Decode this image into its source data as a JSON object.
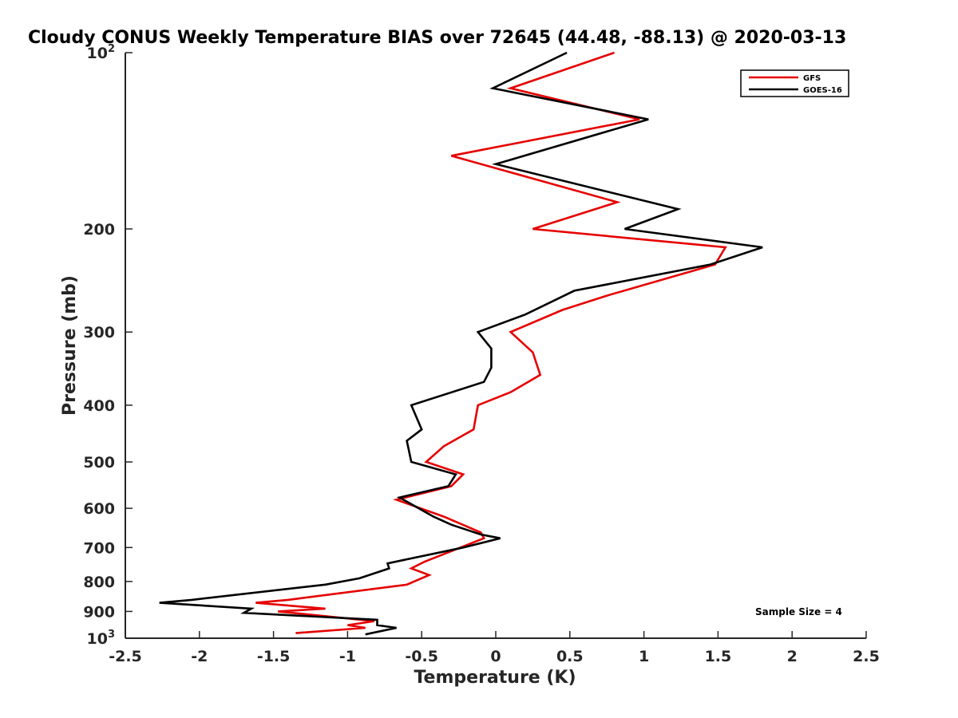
{
  "chart_data": {
    "type": "line",
    "title": "Cloudy CONUS Weekly Temperature BIAS over 72645 (44.48, -88.13) @ 2020-03-13",
    "xlabel": "Temperature (K)",
    "ylabel": "Pressure (mb)",
    "xlim": [
      -2.5,
      2.5
    ],
    "ylim": [
      1000,
      100
    ],
    "y_scale": "log",
    "y_reversed": true,
    "x_ticks": [
      "-2.5",
      "-2",
      "-1.5",
      "-1",
      "-0.5",
      "0",
      "0.5",
      "1",
      "1.5",
      "2",
      "2.5"
    ],
    "y_ticks": [
      {
        "value": 100,
        "label": "10",
        "exp": "2"
      },
      {
        "value": 200,
        "label": "200",
        "exp": ""
      },
      {
        "value": 300,
        "label": "300",
        "exp": ""
      },
      {
        "value": 400,
        "label": "400",
        "exp": ""
      },
      {
        "value": 500,
        "label": "500",
        "exp": ""
      },
      {
        "value": 600,
        "label": "600",
        "exp": ""
      },
      {
        "value": 700,
        "label": "700",
        "exp": ""
      },
      {
        "value": 800,
        "label": "800",
        "exp": ""
      },
      {
        "value": 900,
        "label": "900",
        "exp": ""
      },
      {
        "value": 1000,
        "label": "10",
        "exp": "3"
      }
    ],
    "grid": false,
    "legend_position": "top-right",
    "series": [
      {
        "name": "GFS",
        "color": "#e60000",
        "points": [
          [
            0.8,
            100
          ],
          [
            0.1,
            115
          ],
          [
            0.97,
            130
          ],
          [
            -0.3,
            150
          ],
          [
            0.82,
            180
          ],
          [
            0.25,
            200
          ],
          [
            1.55,
            215
          ],
          [
            1.48,
            230
          ],
          [
            0.75,
            260
          ],
          [
            0.45,
            275
          ],
          [
            0.1,
            300
          ],
          [
            0.25,
            325
          ],
          [
            0.3,
            355
          ],
          [
            0.1,
            380
          ],
          [
            -0.12,
            400
          ],
          [
            -0.15,
            440
          ],
          [
            -0.35,
            470
          ],
          [
            -0.47,
            500
          ],
          [
            -0.22,
            525
          ],
          [
            -0.3,
            550
          ],
          [
            -0.67,
            580
          ],
          [
            -0.35,
            620
          ],
          [
            -0.1,
            660
          ],
          [
            -0.08,
            675
          ],
          [
            -0.48,
            740
          ],
          [
            -0.57,
            760
          ],
          [
            -0.45,
            780
          ],
          [
            -0.6,
            810
          ],
          [
            -1.4,
            860
          ],
          [
            -1.62,
            870
          ],
          [
            -1.15,
            890
          ],
          [
            -1.47,
            900
          ],
          [
            -0.82,
            935
          ],
          [
            -1.0,
            950
          ],
          [
            -0.88,
            960
          ],
          [
            -1.35,
            980
          ]
        ]
      },
      {
        "name": "GOES-16",
        "color": "#000000",
        "points": [
          [
            0.48,
            100
          ],
          [
            -0.02,
            115
          ],
          [
            1.03,
            130
          ],
          [
            0.0,
            155
          ],
          [
            1.23,
            185
          ],
          [
            0.87,
            200
          ],
          [
            1.8,
            215
          ],
          [
            1.45,
            230
          ],
          [
            0.53,
            255
          ],
          [
            0.2,
            280
          ],
          [
            -0.12,
            300
          ],
          [
            -0.03,
            320
          ],
          [
            -0.03,
            345
          ],
          [
            -0.08,
            365
          ],
          [
            -0.57,
            400
          ],
          [
            -0.5,
            440
          ],
          [
            -0.6,
            460
          ],
          [
            -0.57,
            500
          ],
          [
            -0.27,
            525
          ],
          [
            -0.32,
            550
          ],
          [
            -0.65,
            575
          ],
          [
            -0.42,
            620
          ],
          [
            -0.3,
            640
          ],
          [
            -0.1,
            665
          ],
          [
            0.03,
            675
          ],
          [
            -0.22,
            700
          ],
          [
            -0.73,
            745
          ],
          [
            -0.72,
            760
          ],
          [
            -0.92,
            790
          ],
          [
            -1.15,
            810
          ],
          [
            -2.05,
            860
          ],
          [
            -2.27,
            870
          ],
          [
            -1.65,
            890
          ],
          [
            -1.7,
            905
          ],
          [
            -0.8,
            930
          ],
          [
            -0.8,
            950
          ],
          [
            -0.67,
            960
          ],
          [
            -0.88,
            985
          ]
        ]
      }
    ],
    "annotations": [
      "Sample Size = 4"
    ]
  }
}
